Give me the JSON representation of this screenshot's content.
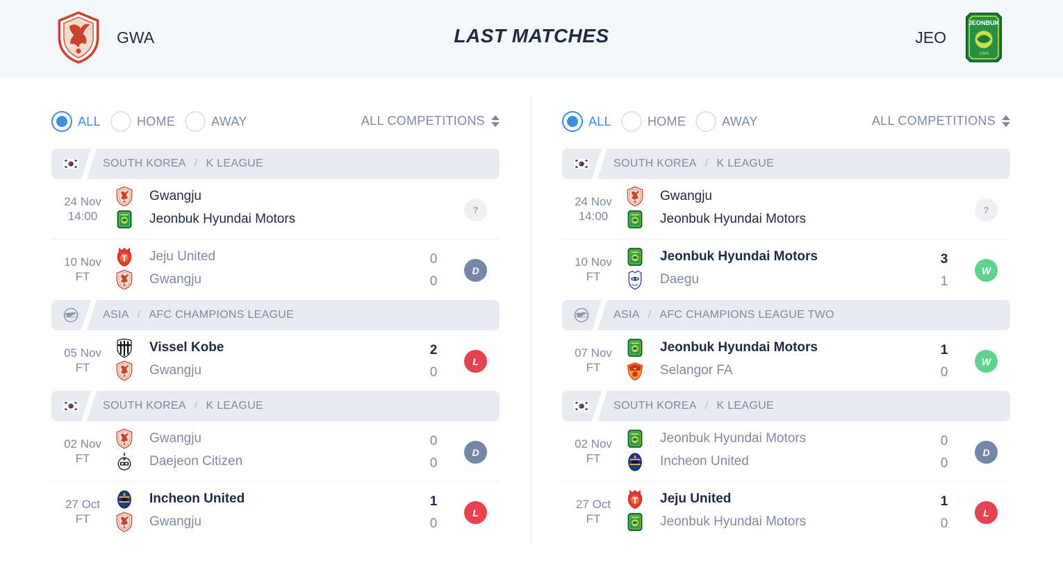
{
  "header": {
    "title": "LAST MATCHES",
    "home_abbr": "GWA",
    "away_abbr": "JEO",
    "jeonbuk_crest_text_top": "JEONBUK",
    "jeonbuk_crest_text_year": "1994"
  },
  "left": {
    "filters": {
      "all": "ALL",
      "home": "HOME",
      "away": "AWAY",
      "competitions": "ALL COMPETITIONS"
    },
    "comps": [
      {
        "country": "SOUTH KOREA",
        "league": "K LEAGUE",
        "flag": "korea-flag-icon"
      },
      {
        "country": "ASIA",
        "league": "AFC CHAMPIONS LEAGUE",
        "flag": "asia-globe-icon"
      },
      {
        "country": "SOUTH KOREA",
        "league": "K LEAGUE",
        "flag": "korea-flag-icon"
      }
    ],
    "matches": [
      {
        "date": "24 Nov",
        "time": "14:00",
        "team1": "Gwangju",
        "team2": "Jeonbuk Hyundai Motors",
        "score1": "",
        "score2": "",
        "result": "?"
      },
      {
        "date": "10 Nov",
        "time": "FT",
        "team1": "Jeju United",
        "team2": "Gwangju",
        "score1": "0",
        "score2": "0",
        "result": "D"
      },
      {
        "date": "05 Nov",
        "time": "FT",
        "team1": "Vissel Kobe",
        "team2": "Gwangju",
        "score1": "2",
        "score2": "0",
        "result": "L"
      },
      {
        "date": "02 Nov",
        "time": "FT",
        "team1": "Gwangju",
        "team2": "Daejeon Citizen",
        "score1": "0",
        "score2": "0",
        "result": "D"
      },
      {
        "date": "27 Oct",
        "time": "FT",
        "team1": "Incheon United",
        "team2": "Gwangju",
        "score1": "1",
        "score2": "0",
        "result": "L"
      }
    ]
  },
  "right": {
    "filters": {
      "all": "ALL",
      "home": "HOME",
      "away": "AWAY",
      "competitions": "ALL COMPETITIONS"
    },
    "comps": [
      {
        "country": "SOUTH KOREA",
        "league": "K LEAGUE",
        "flag": "korea-flag-icon"
      },
      {
        "country": "ASIA",
        "league": "AFC CHAMPIONS LEAGUE TWO",
        "flag": "asia-globe-icon"
      },
      {
        "country": "SOUTH KOREA",
        "league": "K LEAGUE",
        "flag": "korea-flag-icon"
      }
    ],
    "matches": [
      {
        "date": "24 Nov",
        "time": "14:00",
        "team1": "Gwangju",
        "team2": "Jeonbuk Hyundai Motors",
        "score1": "",
        "score2": "",
        "result": "?"
      },
      {
        "date": "10 Nov",
        "time": "FT",
        "team1": "Jeonbuk Hyundai Motors",
        "team2": "Daegu",
        "score1": "3",
        "score2": "1",
        "result": "W"
      },
      {
        "date": "07 Nov",
        "time": "FT",
        "team1": "Jeonbuk Hyundai Motors",
        "team2": "Selangor FA",
        "score1": "1",
        "score2": "0",
        "result": "W"
      },
      {
        "date": "02 Nov",
        "time": "FT",
        "team1": "Jeonbuk Hyundai Motors",
        "team2": "Incheon United",
        "score1": "0",
        "score2": "0",
        "result": "D"
      },
      {
        "date": "27 Oct",
        "time": "FT",
        "team1": "Jeju United",
        "team2": "Jeonbuk Hyundai Motors",
        "score1": "1",
        "score2": "0",
        "result": "L"
      }
    ]
  },
  "colors": {
    "accent": "#3b8fe3",
    "win": "#62d38f",
    "loss": "#e4434f",
    "draw": "#7487a4",
    "text_dark": "#1d2b45",
    "text_muted": "#7e8aa0",
    "header_bg": "#f5f7fa",
    "comp_bg": "#e8ebf0"
  }
}
